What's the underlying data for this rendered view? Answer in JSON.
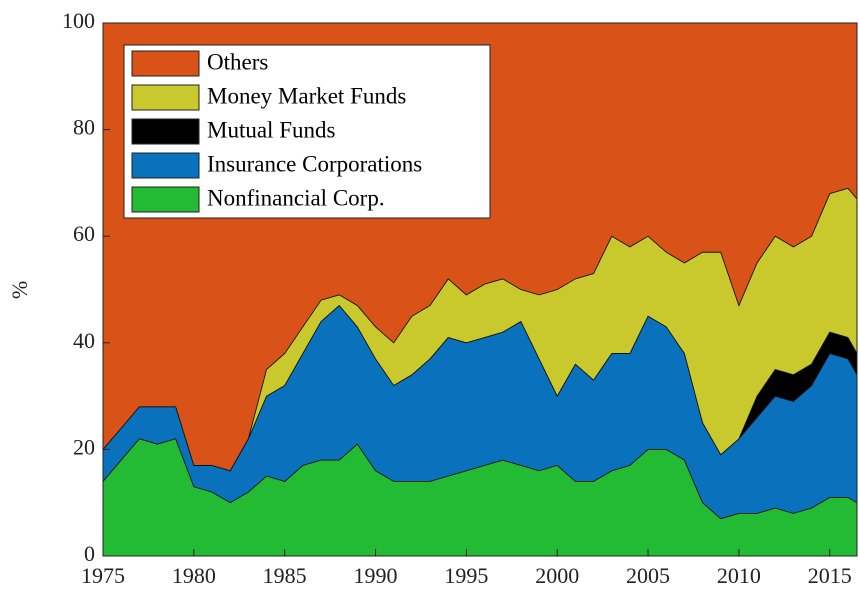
{
  "chart_data": {
    "type": "stacked-area",
    "y_label": "%",
    "x": [
      1975,
      1976,
      1977,
      1978,
      1979,
      1980,
      1981,
      1982,
      1983,
      1984,
      1985,
      1986,
      1987,
      1988,
      1989,
      1990,
      1991,
      1992,
      1993,
      1994,
      1995,
      1996,
      1997,
      1998,
      1999,
      2000,
      2001,
      2002,
      2003,
      2004,
      2005,
      2006,
      2007,
      2008,
      2009,
      2010,
      2011,
      2012,
      2013,
      2014,
      2015,
      2016,
      2016.5
    ],
    "series": [
      {
        "name": "Nonfinancial Corp.",
        "color": "#22bb33",
        "values": [
          14,
          18,
          22,
          21,
          22,
          13,
          12,
          10,
          12,
          15,
          14,
          17,
          18,
          18,
          21,
          16,
          14,
          14,
          14,
          15,
          16,
          17,
          18,
          17,
          16,
          17,
          14,
          14,
          16,
          17,
          20,
          20,
          18,
          10,
          7,
          8,
          8,
          9,
          8,
          9,
          11,
          11,
          10
        ]
      },
      {
        "name": "Insurance Corporations",
        "color": "#0a72bd",
        "values": [
          6,
          6,
          6,
          7,
          6,
          4,
          5,
          6,
          10,
          15,
          18,
          21,
          26,
          29,
          22,
          21,
          18,
          20,
          23,
          26,
          24,
          24,
          24,
          27,
          21,
          13,
          22,
          19,
          22,
          21,
          25,
          23,
          20,
          15,
          12,
          14,
          18,
          21,
          21,
          23,
          27,
          26,
          24
        ]
      },
      {
        "name": "Mutual Funds",
        "color": "#000000",
        "values": [
          0,
          0,
          0,
          0,
          0,
          0,
          0,
          0,
          0,
          0,
          0,
          0,
          0,
          0,
          0,
          0,
          0,
          0,
          0,
          0,
          0,
          0,
          0,
          0,
          0,
          0,
          0,
          0,
          0,
          0,
          0,
          0,
          0,
          0,
          0,
          0,
          4,
          5,
          5,
          4,
          4,
          4,
          4
        ]
      },
      {
        "name": "Money Market Funds",
        "color": "#c9c92e",
        "values": [
          0,
          0,
          0,
          0,
          0,
          0,
          0,
          0,
          0,
          5,
          6,
          5,
          4,
          2,
          4,
          6,
          8,
          11,
          10,
          11,
          9,
          10,
          10,
          6,
          12,
          20,
          16,
          20,
          22,
          20,
          15,
          14,
          17,
          32,
          38,
          25,
          25,
          25,
          24,
          24,
          26,
          28,
          29
        ]
      },
      {
        "name": "Others",
        "color": "#d95319",
        "values": [
          80,
          76,
          72,
          72,
          72,
          83,
          83,
          84,
          78,
          65,
          62,
          57,
          52,
          51,
          53,
          57,
          60,
          55,
          53,
          48,
          51,
          49,
          48,
          50,
          51,
          50,
          48,
          47,
          40,
          42,
          40,
          43,
          45,
          43,
          43,
          53,
          45,
          40,
          42,
          40,
          32,
          31,
          33
        ]
      }
    ],
    "xlim": [
      1975,
      2016.5
    ],
    "xticks": [
      1975,
      1980,
      1985,
      1990,
      1995,
      2000,
      2005,
      2010,
      2015
    ],
    "ylim": [
      0,
      100
    ],
    "yticks": [
      0,
      20,
      40,
      60,
      80,
      100
    ],
    "legend": "upper-left"
  }
}
